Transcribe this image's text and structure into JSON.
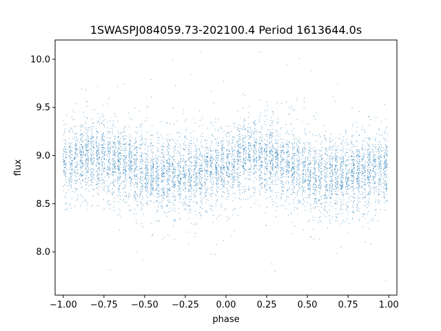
{
  "chart_data": {
    "type": "scatter",
    "title": "1SWASPJ084059.73-202100.4 Period 1613644.0s",
    "xlabel": "phase",
    "ylabel": "flux",
    "xlim": [
      -1.05,
      1.05
    ],
    "ylim": [
      7.55,
      10.2
    ],
    "xticks": [
      -1.0,
      -0.75,
      -0.5,
      -0.25,
      0.0,
      0.25,
      0.5,
      0.75,
      1.0
    ],
    "xtick_labels": [
      "−1.00",
      "−0.75",
      "−0.50",
      "−0.25",
      "0.00",
      "0.25",
      "0.50",
      "0.75",
      "1.00"
    ],
    "yticks": [
      8.0,
      8.5,
      9.0,
      9.5,
      10.0
    ],
    "ytick_labels": [
      "8.0",
      "8.5",
      "9.0",
      "9.5",
      "10.0"
    ],
    "grid": false,
    "marker_color": "#1f77b4",
    "profile": {
      "phase": [
        0.0,
        0.05,
        0.1,
        0.15,
        0.2,
        0.25,
        0.3,
        0.35,
        0.4,
        0.45,
        0.5,
        0.55,
        0.6,
        0.65,
        0.7,
        0.75,
        0.8,
        0.85,
        0.9,
        0.95,
        1.0
      ],
      "median_flux": [
        8.88,
        8.95,
        8.99,
        9.0,
        8.99,
        8.97,
        8.95,
        8.92,
        8.9,
        8.87,
        8.82,
        8.79,
        8.78,
        8.79,
        8.8,
        8.8,
        8.8,
        8.82,
        8.84,
        8.86,
        8.88
      ],
      "spread": 0.2,
      "range": [
        7.65,
        10.08
      ]
    }
  }
}
